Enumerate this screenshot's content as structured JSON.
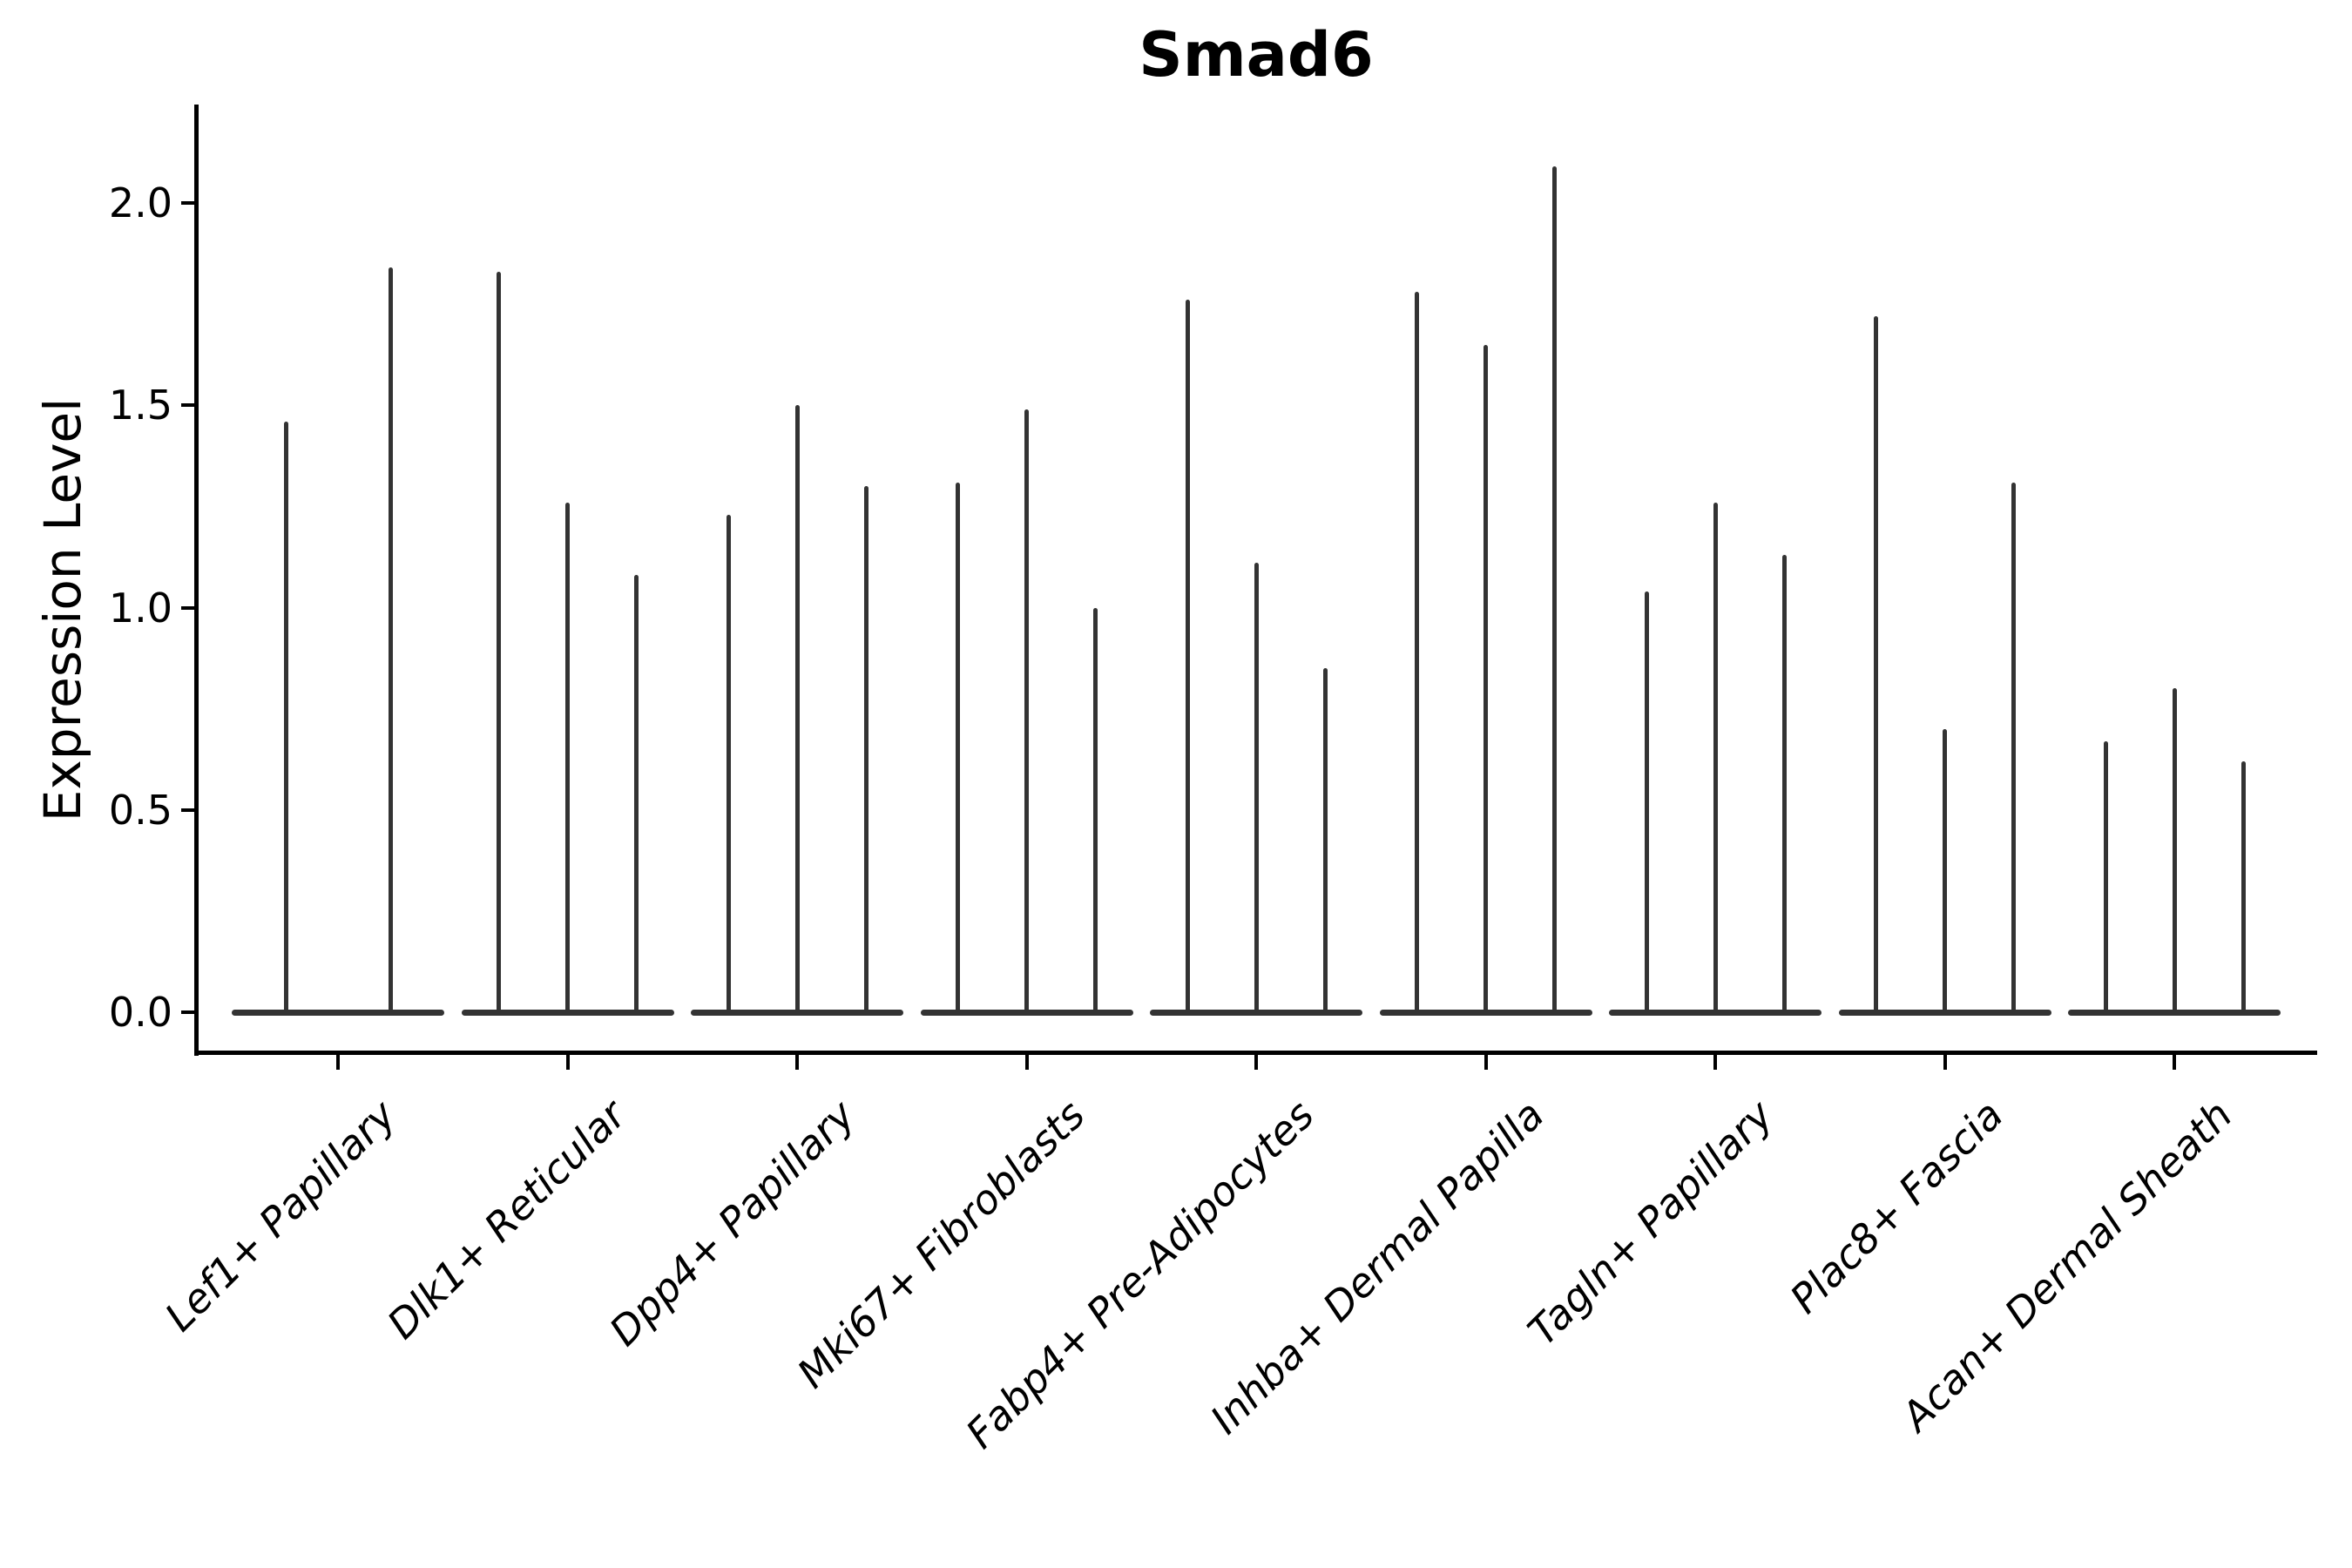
{
  "chart_data": {
    "type": "violin",
    "title": "Smad6",
    "xlabel": "",
    "ylabel": "Expression Level",
    "ylim": [
      -0.1,
      2.24
    ],
    "yticks": [
      "0.0",
      "0.5",
      "1.0",
      "1.5",
      "2.0"
    ],
    "ytick_values": [
      0.0,
      0.5,
      1.0,
      1.5,
      2.0
    ],
    "grid": false,
    "legend": "none",
    "violin_color": "#333333",
    "axis_color": "#000000",
    "categories": [
      "Lef1+ Papillary",
      "Dlk1+ Reticular",
      "Dpp4+ Papillary",
      "Mki67+ Fibroblasts",
      "Fabp4+ Pre-Adipocytes",
      "Inhba+ Dermal Papilla",
      "Tagln+ Papillary",
      "Plac8+ Fascia",
      "Acan+ Dermal Sheath"
    ],
    "groups": [
      {
        "category": "Lef1+ Papillary",
        "violin_peaks": [
          1.46,
          1.84
        ]
      },
      {
        "category": "Dlk1+ Reticular",
        "violin_peaks": [
          1.83,
          1.26,
          1.08
        ]
      },
      {
        "category": "Dpp4+ Papillary",
        "violin_peaks": [
          1.23,
          1.5,
          1.3
        ]
      },
      {
        "category": "Mki67+ Fibroblasts",
        "violin_peaks": [
          1.31,
          1.49,
          1.0
        ]
      },
      {
        "category": "Fabp4+ Pre-Adipocytes",
        "violin_peaks": [
          1.76,
          1.11,
          0.85
        ]
      },
      {
        "category": "Inhba+ Dermal Papilla",
        "violin_peaks": [
          1.78,
          1.65,
          2.09
        ]
      },
      {
        "category": "Tagln+ Papillary",
        "violin_peaks": [
          1.04,
          1.26,
          1.13
        ]
      },
      {
        "category": "Plac8+ Fascia",
        "violin_peaks": [
          1.72,
          0.7,
          1.31
        ]
      },
      {
        "category": "Acan+ Dermal Sheath",
        "violin_peaks": [
          0.67,
          0.8,
          0.62
        ]
      }
    ]
  }
}
